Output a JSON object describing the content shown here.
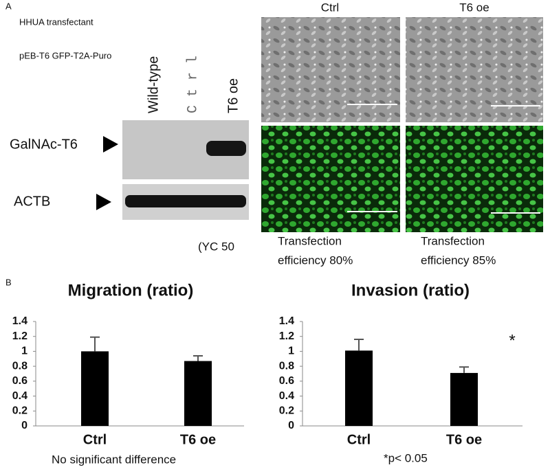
{
  "panel_a": {
    "label": "A",
    "cell_line": "HHUA transfectant",
    "vector": "pEB-T6 GFP-T2A-Puro",
    "lanes": [
      "Wild-type",
      "C t r l",
      "T6 oe"
    ],
    "bands": [
      "GalNAc-T6",
      "ACTB"
    ],
    "note": "(YC 50",
    "image_columns": [
      "Ctrl",
      "T6 oe"
    ],
    "efficiency": [
      [
        "Transfection",
        "efficiency 80%"
      ],
      [
        "Transfection",
        "efficiency 85%"
      ]
    ]
  },
  "panel_b_label": "B",
  "chart_data": [
    {
      "type": "bar",
      "title": "Migration (ratio)",
      "categories": [
        "Ctrl",
        "T6 oe"
      ],
      "values": [
        1.0,
        0.87
      ],
      "errors": [
        0.19,
        0.07
      ],
      "color": "#000000",
      "ylim": [
        0,
        1.4
      ],
      "yticks": [
        0,
        0.2,
        0.4,
        0.6,
        0.8,
        1,
        1.2,
        1.4
      ],
      "note": "No significant difference"
    },
    {
      "type": "bar",
      "title": "Invasion (ratio)",
      "categories": [
        "Ctrl",
        "T6 oe"
      ],
      "values": [
        1.01,
        0.71
      ],
      "errors": [
        0.15,
        0.08
      ],
      "color": "#000000",
      "ylim": [
        0,
        1.4
      ],
      "yticks": [
        0,
        0.2,
        0.4,
        0.6,
        0.8,
        1,
        1.2,
        1.4
      ],
      "annotation": "*",
      "note": "*p< 0.05"
    }
  ]
}
